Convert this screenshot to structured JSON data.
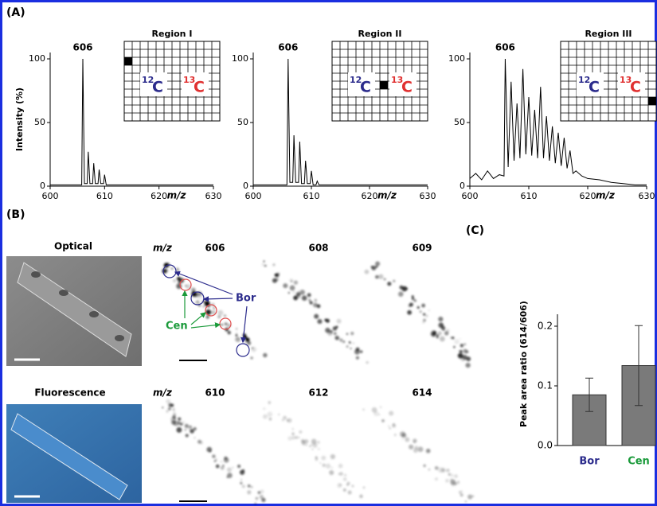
{
  "panel_labels": [
    "(A)",
    "(B)",
    "(C)"
  ],
  "chart_data": [
    {
      "type": "line",
      "title": "Region I",
      "ylabel": "Intensity (%)",
      "xlabel": "m/z",
      "annotation": "606",
      "color": "#000000",
      "x": [
        600,
        605.8,
        606,
        606.3,
        606.8,
        607,
        607.3,
        607.8,
        608,
        608.3,
        608.8,
        609,
        609.3,
        609.8,
        610,
        610.3,
        630
      ],
      "values": [
        1,
        1,
        100,
        2,
        2,
        27,
        2,
        2,
        18,
        2,
        2,
        13,
        2,
        2,
        9,
        1,
        1
      ],
      "xlim": [
        600,
        630
      ],
      "xticks": [
        600,
        610,
        620,
        630
      ],
      "ylim": [
        0,
        105
      ],
      "yticks": [
        0,
        50,
        100
      ],
      "inset": [
        {
          "mass": "12",
          "element": "C",
          "color": "#2b2b8c"
        },
        {
          "mass": "13",
          "element": "C",
          "color": "#e03030"
        }
      ]
    },
    {
      "type": "line",
      "title": "Region II",
      "xlabel": "m/z",
      "annotation": "606",
      "color": "#000000",
      "x": [
        600,
        605.8,
        606,
        606.3,
        606.8,
        607,
        607.3,
        607.8,
        608,
        608.3,
        608.8,
        609,
        609.3,
        609.8,
        610,
        610.3,
        610.8,
        611,
        611.3,
        630
      ],
      "values": [
        1,
        1,
        100,
        3,
        3,
        40,
        3,
        3,
        35,
        2,
        2,
        20,
        2,
        2,
        12,
        1,
        1,
        4,
        1,
        1
      ],
      "xlim": [
        600,
        630
      ],
      "xticks": [
        600,
        610,
        620,
        630
      ],
      "ylim": [
        0,
        105
      ],
      "yticks": [
        0,
        50,
        100
      ],
      "inset": [
        {
          "mass": "12",
          "element": "C",
          "color": "#2b2b8c"
        },
        {
          "mass": "13",
          "element": "C",
          "color": "#e03030"
        }
      ]
    },
    {
      "type": "line",
      "title": "Region III",
      "xlabel": "m/z",
      "annotation": "606",
      "color": "#000000",
      "x": [
        600,
        601,
        602,
        603,
        604,
        605,
        605.8,
        606,
        606.5,
        607,
        607.5,
        608,
        608.5,
        609,
        609.5,
        610,
        610.5,
        611,
        611.5,
        612,
        612.5,
        613,
        613.5,
        614,
        614.5,
        615,
        615.5,
        616,
        616.5,
        617,
        617.5,
        618,
        619,
        620,
        622,
        624,
        626,
        628,
        630
      ],
      "values": [
        6,
        10,
        5,
        12,
        6,
        9,
        8,
        100,
        15,
        82,
        20,
        65,
        22,
        92,
        25,
        70,
        24,
        60,
        22,
        78,
        22,
        55,
        20,
        47,
        18,
        42,
        16,
        38,
        14,
        28,
        10,
        12,
        8,
        6,
        5,
        3,
        2,
        1,
        1
      ],
      "xlim": [
        600,
        630
      ],
      "xticks": [
        600,
        610,
        620,
        630
      ],
      "ylim": [
        0,
        105
      ],
      "yticks": [
        0,
        50,
        100
      ],
      "inset": [
        {
          "mass": "12",
          "element": "C",
          "color": "#2b2b8c"
        },
        {
          "mass": "13",
          "element": "C",
          "color": "#e03030"
        }
      ]
    },
    {
      "type": "bar",
      "ylabel": "Peak area ratio (614/606)",
      "categories": [
        "Bor",
        "Cen"
      ],
      "category_colors": [
        "#2b2b8c",
        "#1a9a3a"
      ],
      "values": [
        0.085,
        0.134
      ],
      "errors": [
        0.028,
        0.067
      ],
      "color": "#7a7a7a",
      "ylim": [
        0,
        0.22
      ],
      "yticks": [
        {
          "value": 0,
          "label": "0.0"
        },
        0.1,
        0.2
      ]
    }
  ],
  "panel_b": {
    "optical": "Optical",
    "fluorescence": "Fluorescence",
    "mz_label": "m/z",
    "ion_images": [
      "606",
      "608",
      "609",
      "610",
      "612",
      "614"
    ],
    "bor": "Bor",
    "cen": "Cen"
  }
}
